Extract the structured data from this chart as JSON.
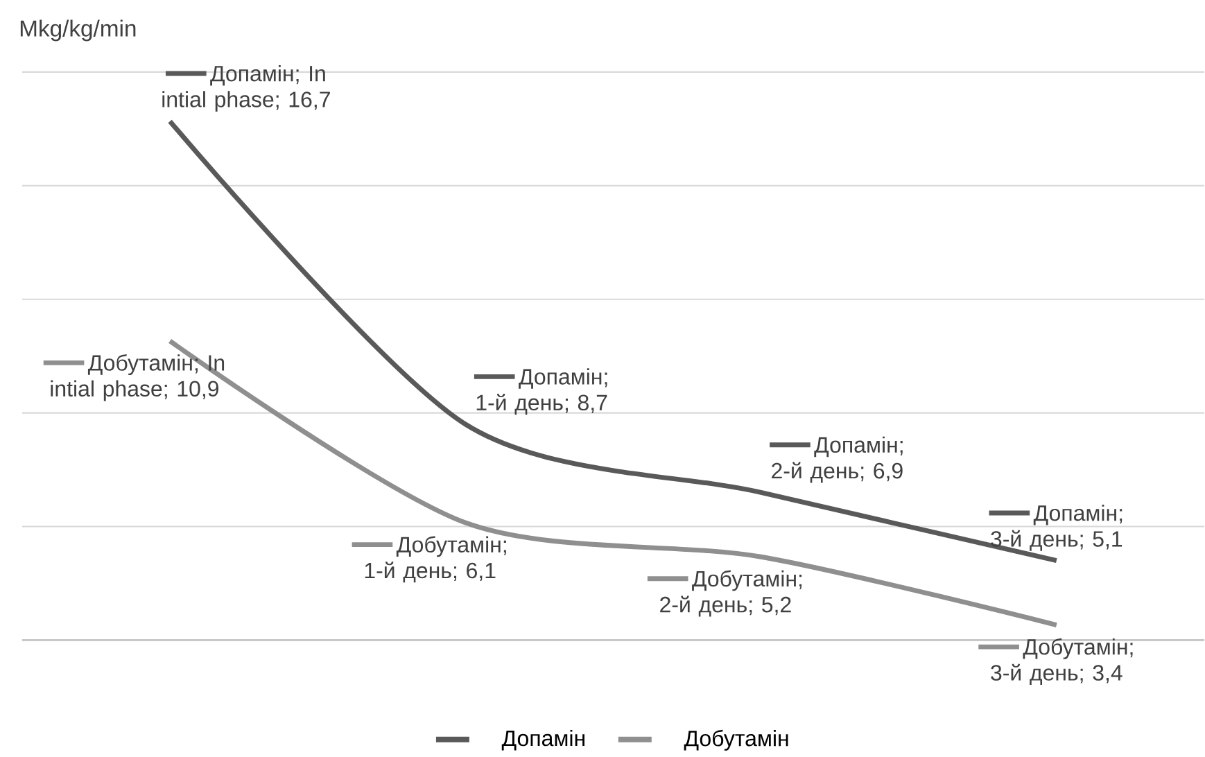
{
  "chart_data": {
    "type": "line",
    "ylabel": "Mkg/kg/min",
    "categories": [
      null,
      null,
      null,
      null
    ],
    "series": [
      {
        "name": "Допамін",
        "color": "#595959",
        "values": [
          16.7,
          8.7,
          6.9,
          5.1
        ],
        "value_labels": [
          "Допамін; In intial phase; 16,7",
          "Допамін; 1-й день; 8,7",
          "Допамін; 2-й день; 6,9",
          "Допамін; 3-й день; 5,1"
        ]
      },
      {
        "name": "Добутамін",
        "color": "#8f8f8f",
        "values": [
          10.9,
          6.1,
          5.2,
          3.4
        ],
        "value_labels": [
          "Добутамін; In intial phase; 10,9",
          "Добутамін; 1-й день; 6,1",
          "Добутамін; 2-й день; 5,2",
          "Добутамін; 3-й день; 3,4"
        ]
      }
    ],
    "ylim": [
      3,
      18
    ],
    "yticks": [
      {
        "value": 3,
        "label": null
      },
      {
        "value": 6,
        "label": null
      },
      {
        "value": 9,
        "label": null
      },
      {
        "value": 12,
        "label": null
      },
      {
        "value": 15,
        "label": null
      },
      {
        "value": 18,
        "label": null
      }
    ],
    "grid": "y",
    "legend": "bottom",
    "marker": "none",
    "line_style": "solid"
  }
}
